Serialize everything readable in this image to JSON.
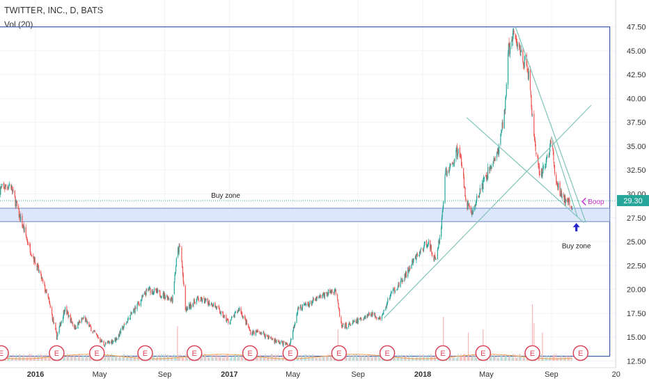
{
  "header": {
    "title": "TWITTER, INC., D, BATS",
    "volume_label": "Vol (20)"
  },
  "price_label": {
    "value": "29.30",
    "color": "#26a69a"
  },
  "colors": {
    "up": "#26a69a",
    "down": "#ef5350",
    "trendline": "#7fc4b8",
    "box": "#3d5aa8",
    "buy_zone_fill": "#dde7fb",
    "buy_zone_stroke": "#6f88c8",
    "earnings": "#d84458",
    "boop": "#cc2fcb",
    "arrow": "#2626c7"
  },
  "chart_data": {
    "type": "candlestick",
    "title": "TWITTER, INC., D, BATS",
    "ylim": [
      11.8,
      49.0
    ],
    "y_ticks": [
      "47.50",
      "45.00",
      "42.50",
      "40.00",
      "37.50",
      "35.00",
      "32.50",
      "30.00",
      "27.50",
      "25.00",
      "22.50",
      "20.00",
      "17.50",
      "15.00",
      "12.50"
    ],
    "x_range": [
      "2015-10-26",
      "2018-12-31"
    ],
    "x_ticks": [
      {
        "label": "2016",
        "date": "2016-01-01",
        "bold": true
      },
      {
        "label": "May",
        "date": "2016-05-01",
        "bold": false
      },
      {
        "label": "Sep",
        "date": "2016-09-01",
        "bold": false
      },
      {
        "label": "2017",
        "date": "2017-01-01",
        "bold": true
      },
      {
        "label": "May",
        "date": "2017-05-01",
        "bold": false
      },
      {
        "label": "Sep",
        "date": "2017-09-01",
        "bold": false
      },
      {
        "label": "2018",
        "date": "2018-01-01",
        "bold": true
      },
      {
        "label": "May",
        "date": "2018-05-01",
        "bold": false
      },
      {
        "label": "Sep",
        "date": "2018-09-01",
        "bold": false
      },
      {
        "label": "20",
        "date": "2019-01-01",
        "bold": false
      }
    ],
    "price_path": [
      [
        "2015-10-26",
        30.5
      ],
      [
        "2015-11-15",
        31.0
      ],
      [
        "2015-11-30",
        28.0
      ],
      [
        "2015-12-20",
        24.5
      ],
      [
        "2016-01-10",
        21.5
      ],
      [
        "2016-01-25",
        19.0
      ],
      [
        "2016-02-10",
        15.0
      ],
      [
        "2016-02-25",
        18.0
      ],
      [
        "2016-03-15",
        16.0
      ],
      [
        "2016-04-01",
        17.0
      ],
      [
        "2016-04-20",
        15.5
      ],
      [
        "2016-05-10",
        14.2
      ],
      [
        "2016-06-01",
        14.8
      ],
      [
        "2016-07-01",
        17.5
      ],
      [
        "2016-08-01",
        20.0
      ],
      [
        "2016-08-25",
        19.5
      ],
      [
        "2016-09-15",
        19.0
      ],
      [
        "2016-09-25",
        24.0
      ],
      [
        "2016-10-01",
        24.5
      ],
      [
        "2016-10-10",
        17.8
      ],
      [
        "2016-11-01",
        19.0
      ],
      [
        "2016-12-01",
        18.5
      ],
      [
        "2016-12-31",
        16.5
      ],
      [
        "2017-01-20",
        18.0
      ],
      [
        "2017-02-10",
        15.5
      ],
      [
        "2017-03-01",
        15.5
      ],
      [
        "2017-04-01",
        14.5
      ],
      [
        "2017-04-25",
        14.2
      ],
      [
        "2017-05-10",
        18.0
      ],
      [
        "2017-06-01",
        18.5
      ],
      [
        "2017-07-01",
        19.5
      ],
      [
        "2017-07-20",
        20.0
      ],
      [
        "2017-08-01",
        16.0
      ],
      [
        "2017-08-25",
        16.5
      ],
      [
        "2017-09-25",
        17.5
      ],
      [
        "2017-10-15",
        17.0
      ],
      [
        "2017-11-01",
        19.5
      ],
      [
        "2017-11-25",
        21.0
      ],
      [
        "2017-12-15",
        23.0
      ],
      [
        "2018-01-10",
        25.0
      ],
      [
        "2018-01-25",
        23.0
      ],
      [
        "2018-02-05",
        26.5
      ],
      [
        "2018-02-12",
        32.0
      ],
      [
        "2018-02-25",
        33.0
      ],
      [
        "2018-03-10",
        35.0
      ],
      [
        "2018-03-25",
        29.0
      ],
      [
        "2018-04-05",
        28.0
      ],
      [
        "2018-04-20",
        30.5
      ],
      [
        "2018-05-10",
        33.0
      ],
      [
        "2018-05-25",
        34.5
      ],
      [
        "2018-06-05",
        39.0
      ],
      [
        "2018-06-12",
        45.0
      ],
      [
        "2018-06-20",
        46.5
      ],
      [
        "2018-07-05",
        45.0
      ],
      [
        "2018-07-20",
        42.5
      ],
      [
        "2018-07-28",
        37.0
      ],
      [
        "2018-08-10",
        31.5
      ],
      [
        "2018-08-25",
        34.0
      ],
      [
        "2018-09-01",
        35.5
      ],
      [
        "2018-09-10",
        31.0
      ],
      [
        "2018-09-25",
        29.5
      ],
      [
        "2018-10-10",
        28.5
      ]
    ],
    "volume_spikes": [
      {
        "date": "2016-09-25",
        "v": 0.55
      },
      {
        "date": "2017-07-25",
        "v": 0.5
      },
      {
        "date": "2018-02-09",
        "v": 0.7
      },
      {
        "date": "2018-03-28",
        "v": 0.45
      },
      {
        "date": "2018-04-25",
        "v": 0.5
      },
      {
        "date": "2018-07-27",
        "v": 0.9
      },
      {
        "date": "2018-07-30",
        "v": 0.6
      },
      {
        "date": "2018-08-15",
        "v": 0.45
      }
    ],
    "earnings_dates": [
      "2015-10-28",
      "2016-02-10",
      "2016-04-26",
      "2016-07-26",
      "2016-10-27",
      "2017-02-09",
      "2017-04-26",
      "2017-07-27",
      "2017-10-26",
      "2018-02-08",
      "2018-04-25",
      "2018-07-27",
      "2018-10-26"
    ],
    "annotations": {
      "buy_zone_box": {
        "y_low": 27.1,
        "y_high": 28.5,
        "x_start": "2015-10-26",
        "x_end": "2018-12-20"
      },
      "outer_box": {
        "y_low": 13.0,
        "y_high": 47.5,
        "x_start": "2015-10-26",
        "x_end": "2018-12-20"
      },
      "price_line": 29.3,
      "trendlines": [
        {
          "from": [
            "2017-10-20",
            17.0
          ],
          "to": [
            "2018-11-15",
            39.3
          ]
        },
        {
          "from": [
            "2018-03-25",
            38.0
          ],
          "to": [
            "2018-11-01",
            27.0
          ]
        },
        {
          "from": [
            "2018-06-25",
            47.5
          ],
          "to": [
            "2018-11-05",
            27.0
          ]
        },
        {
          "from": [
            "2018-09-01",
            36.0
          ],
          "to": [
            "2018-10-20",
            27.6
          ]
        }
      ],
      "buy_zone_label_1": {
        "text": "Buy zone",
        "date": "2016-12-25",
        "y": 29.6
      },
      "buy_zone_label_2": {
        "text": "Buy zone",
        "date": "2018-10-18",
        "y": 24.3
      },
      "boop_label": {
        "text": "Boop",
        "date": "2018-11-10",
        "y": 29.2
      }
    }
  }
}
